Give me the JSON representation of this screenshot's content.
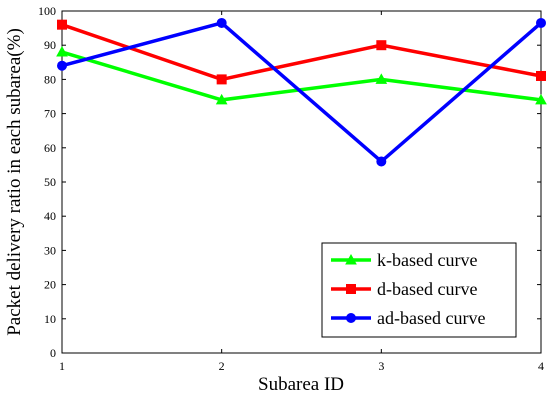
{
  "chart_data": {
    "type": "line",
    "title": "",
    "xlabel": "Subarea ID",
    "ylabel": "Packet delivery ratio in each subarea(%)",
    "x": [
      1,
      2,
      3,
      4
    ],
    "xticks": [
      "1",
      "2",
      "3",
      "4"
    ],
    "xlim": [
      1,
      4
    ],
    "ylim": [
      0,
      100
    ],
    "yticks": [
      "0",
      "10",
      "20",
      "30",
      "40",
      "50",
      "60",
      "70",
      "80",
      "90",
      "100"
    ],
    "grid": false,
    "legend_position": "bottom-right",
    "series": [
      {
        "name": "k-based curve",
        "color": "#00ff00",
        "marker": "triangle",
        "values": [
          88,
          74,
          80,
          74
        ]
      },
      {
        "name": "d-based curve",
        "color": "#ff0000",
        "marker": "square",
        "values": [
          96,
          80,
          90,
          81
        ]
      },
      {
        "name": "ad-based curve",
        "color": "#0000ff",
        "marker": "circle",
        "values": [
          84,
          96.5,
          56,
          96.5
        ]
      }
    ]
  }
}
